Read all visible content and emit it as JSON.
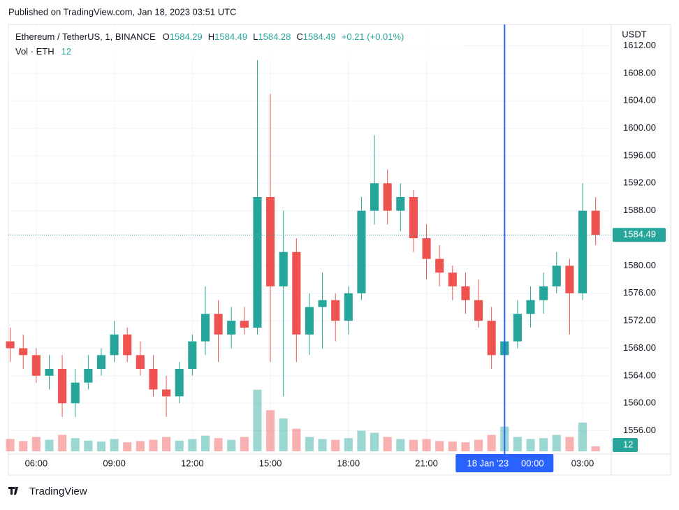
{
  "chart_data": {
    "type": "candlestick",
    "published": "Published on TradingView.com, Jan 18, 2023 03:51 UTC",
    "symbol": "Ethereum / TetherUS, 1, BINANCE",
    "legend": {
      "o_label": "O",
      "open": 1584.29,
      "h_label": "H",
      "high": 1584.49,
      "l_label": "L",
      "low": 1584.28,
      "c_label": "C",
      "close": 1584.49,
      "change": "+0.21 (+0.01%)"
    },
    "volume_label": "Vol · ETH",
    "volume_last": 12,
    "currency": "USDT",
    "brand": "TradingView",
    "up_color": "#26a69a",
    "down_color": "#ef5350",
    "x": [
      5,
      5.5,
      6,
      6.5,
      7,
      7.5,
      8,
      8.5,
      9,
      9.5,
      10,
      10.5,
      11,
      11.5,
      12,
      12.5,
      13,
      13.5,
      14,
      14.5,
      15,
      15.5,
      16,
      16.5,
      17,
      17.5,
      18,
      18.5,
      19,
      19.5,
      20,
      20.5,
      21,
      21.5,
      22,
      22.5,
      23,
      23.5,
      24,
      24.5,
      25,
      25.5,
      26,
      26.5,
      27,
      27.5
    ],
    "open": [
      1569,
      1568,
      1567,
      1564,
      1565,
      1560,
      1563,
      1565,
      1567,
      1570,
      1567,
      1565,
      1562,
      1561,
      1565,
      1569,
      1573,
      1570,
      1572,
      1571,
      1590,
      1577,
      1582,
      1570,
      1574,
      1575,
      1572,
      1576,
      1588,
      1592,
      1588,
      1590,
      1584,
      1581,
      1579,
      1577,
      1575,
      1572,
      1567,
      1569,
      1573,
      1575,
      1577,
      1580,
      1576,
      1588
    ],
    "high": [
      1571,
      1570,
      1568,
      1567,
      1567,
      1565,
      1567,
      1568,
      1572,
      1571,
      1569,
      1567,
      1564,
      1566,
      1570,
      1577,
      1575,
      1574,
      1574,
      1610,
      1605,
      1588,
      1584,
      1576,
      1579,
      1576,
      1577,
      1590,
      1599,
      1594,
      1592,
      1591,
      1586,
      1583,
      1580,
      1579,
      1578,
      1574,
      1570,
      1575,
      1577,
      1579,
      1582,
      1581,
      1592,
      1590
    ],
    "low": [
      1566,
      1565,
      1563,
      1562,
      1558,
      1558,
      1562,
      1564,
      1566,
      1566,
      1564,
      1561,
      1558,
      1560,
      1564,
      1567,
      1566,
      1568,
      1570,
      1570,
      1566,
      1561,
      1566,
      1567,
      1568,
      1569,
      1570,
      1575,
      1586,
      1586,
      1585,
      1582,
      1578,
      1577,
      1575,
      1573,
      1571,
      1565,
      1563,
      1568,
      1571,
      1573,
      1576,
      1570,
      1575,
      1583
    ],
    "close": [
      1568,
      1567,
      1564,
      1565,
      1560,
      1563,
      1565,
      1567,
      1570,
      1567,
      1565,
      1562,
      1561,
      1565,
      1569,
      1573,
      1570,
      1572,
      1571,
      1590,
      1577,
      1582,
      1570,
      1574,
      1575,
      1572,
      1576,
      1588,
      1592,
      1588,
      1590,
      1584,
      1581,
      1579,
      1577,
      1575,
      1572,
      1567,
      1569,
      1573,
      1575,
      1577,
      1580,
      1576,
      1588,
      1584.49
    ],
    "volume": [
      30,
      25,
      35,
      28,
      40,
      32,
      26,
      24,
      30,
      22,
      25,
      28,
      35,
      26,
      30,
      38,
      32,
      28,
      35,
      150,
      100,
      80,
      55,
      35,
      30,
      28,
      32,
      50,
      45,
      35,
      30,
      28,
      30,
      25,
      24,
      22,
      28,
      40,
      60,
      35,
      30,
      32,
      40,
      35,
      70,
      12
    ],
    "xlim": [
      4.93,
      28.1
    ],
    "xticks": [
      {
        "value": 6,
        "label": "06:00"
      },
      {
        "value": 9,
        "label": "09:00"
      },
      {
        "value": 12,
        "label": "12:00"
      },
      {
        "value": 15,
        "label": "15:00"
      },
      {
        "value": 18,
        "label": "18:00"
      },
      {
        "value": 21,
        "label": "21:00"
      },
      {
        "value": 27,
        "label": "03:00"
      }
    ],
    "crosshair": {
      "x": 24,
      "date": "18 Jan '23",
      "time": "00:00"
    },
    "ylim": [
      1552.6,
      1615.1
    ],
    "yticks": [
      {
        "value": 1556,
        "label": "1556.00"
      },
      {
        "value": 1560,
        "label": "1560.00"
      },
      {
        "value": 1564,
        "label": "1564.00"
      },
      {
        "value": 1568,
        "label": "1568.00"
      },
      {
        "value": 1572,
        "label": "1572.00"
      },
      {
        "value": 1576,
        "label": "1576.00"
      },
      {
        "value": 1580,
        "label": "1580.00"
      },
      {
        "value": 1584,
        "label": "1584.00"
      },
      {
        "value": 1588,
        "label": "1588.00"
      },
      {
        "value": 1592,
        "label": "1592.00"
      },
      {
        "value": 1596,
        "label": "1596.00"
      },
      {
        "value": 1600,
        "label": "1600.00"
      },
      {
        "value": 1604,
        "label": "1604.00"
      },
      {
        "value": 1608,
        "label": "1608.00"
      },
      {
        "value": 1612,
        "label": "1612.00"
      }
    ],
    "vlim": [
      0,
      170
    ],
    "grid": true
  }
}
